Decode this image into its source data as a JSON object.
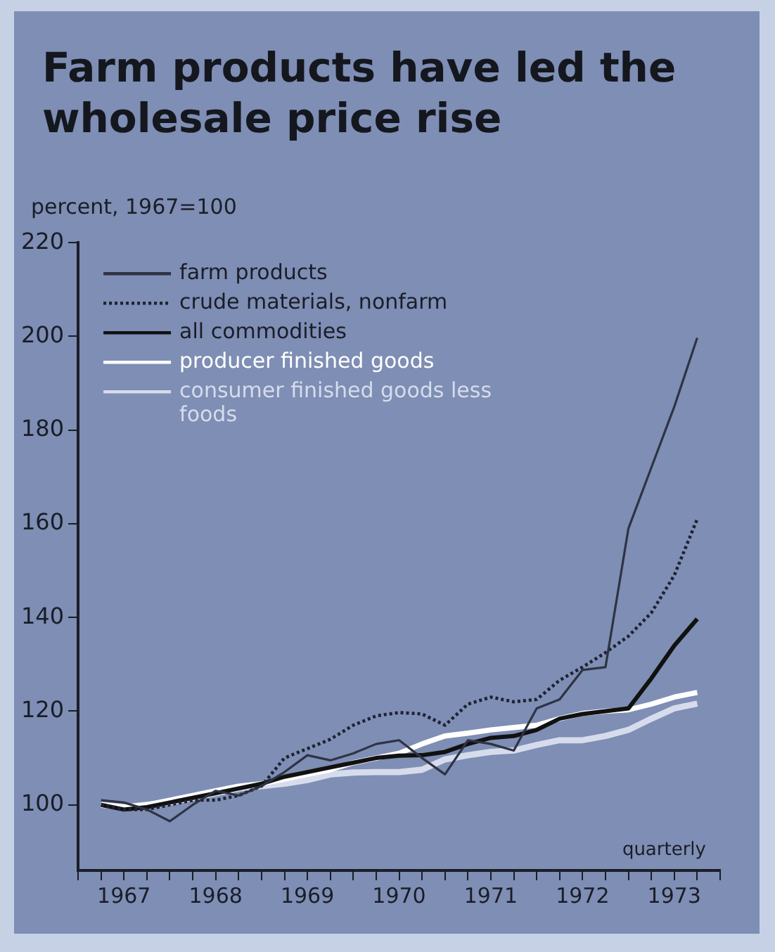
{
  "chart_data": {
    "type": "line",
    "title": "Farm products have led the wholesale price rise",
    "ylabel": "percent, 1967=100",
    "annotations": [
      "quarterly"
    ],
    "x": [
      1967.25,
      1967.5,
      1967.75,
      1968,
      1968.25,
      1968.5,
      1968.75,
      1969,
      1969.25,
      1969.5,
      1969.75,
      1970,
      1970.25,
      1970.5,
      1970.75,
      1971,
      1971.25,
      1971.5,
      1971.75,
      1972,
      1972.25,
      1972.5,
      1972.75,
      1973,
      1973.25,
      1973.5,
      1973.75
    ],
    "series": [
      {
        "name": "farm products",
        "color": "#2e3344",
        "line_style": "solid",
        "values": [
          101,
          100.5,
          99,
          96.5,
          100,
          103,
          102,
          104,
          107,
          110.6,
          109.5,
          111,
          113,
          113.8,
          110,
          106.5,
          113.8,
          113,
          111.6,
          120.6,
          122.5,
          128.8,
          129.4,
          159,
          172,
          185,
          199.7
        ]
      },
      {
        "name": "crude materials, nonfarm",
        "color": "#1e2232",
        "line_style": "dotted",
        "values": [
          100,
          99,
          99,
          100,
          101,
          101,
          102,
          104,
          110,
          112,
          114,
          117,
          119,
          119.7,
          119.4,
          117,
          121.5,
          123,
          122,
          122.5,
          126.6,
          129.4,
          132.5,
          136,
          141,
          149,
          161
        ]
      },
      {
        "name": "all commodities",
        "color": "#111111",
        "line_style": "solid",
        "values": [
          100,
          99,
          99.5,
          100.5,
          101.5,
          102.5,
          103.5,
          104.5,
          106,
          107,
          108,
          109,
          110,
          110.5,
          110.6,
          111.3,
          113,
          114.3,
          114.7,
          116,
          118.4,
          119.4,
          120,
          120.6,
          127,
          134,
          139.7
        ]
      },
      {
        "name": "producer finished goods",
        "color": "#ffffff",
        "line_style": "solid",
        "values": [
          100,
          99.5,
          100,
          101,
          102,
          103,
          104,
          104.5,
          105.5,
          106.5,
          107.5,
          109,
          110,
          111,
          113,
          114.7,
          115.3,
          116,
          116.5,
          117,
          118.4,
          119.5,
          120,
          120.3,
          121.5,
          123,
          124
        ]
      },
      {
        "name": "consumer finished goods less foods",
        "color": "#d6dcec",
        "line_style": "solid",
        "values": [
          100,
          99.5,
          100,
          100.5,
          101.5,
          102.5,
          103.5,
          104,
          104.5,
          105.3,
          106.5,
          106.9,
          107,
          107,
          107.5,
          109.7,
          110.6,
          111.3,
          111.6,
          112.8,
          113.8,
          113.8,
          114.7,
          116,
          118.4,
          120.6,
          121.6
        ]
      }
    ],
    "xlim": [
      1967,
      1974
    ],
    "xticks": [
      {
        "value": 1967,
        "label": null
      },
      {
        "value": 1967.25,
        "label": null
      },
      {
        "value": 1967.5,
        "label": "1967"
      },
      {
        "value": 1967.75,
        "label": null
      },
      {
        "value": 1968,
        "label": null
      },
      {
        "value": 1968.25,
        "label": null
      },
      {
        "value": 1968.5,
        "label": "1968"
      },
      {
        "value": 1968.75,
        "label": null
      },
      {
        "value": 1969,
        "label": null
      },
      {
        "value": 1969.25,
        "label": null
      },
      {
        "value": 1969.5,
        "label": "1969"
      },
      {
        "value": 1969.75,
        "label": null
      },
      {
        "value": 1970,
        "label": null
      },
      {
        "value": 1970.25,
        "label": null
      },
      {
        "value": 1970.5,
        "label": "1970"
      },
      {
        "value": 1970.75,
        "label": null
      },
      {
        "value": 1971,
        "label": null
      },
      {
        "value": 1971.25,
        "label": null
      },
      {
        "value": 1971.5,
        "label": "1971"
      },
      {
        "value": 1971.75,
        "label": null
      },
      {
        "value": 1972,
        "label": null
      },
      {
        "value": 1972.25,
        "label": null
      },
      {
        "value": 1972.5,
        "label": "1972"
      },
      {
        "value": 1972.75,
        "label": null
      },
      {
        "value": 1973,
        "label": null
      },
      {
        "value": 1973.25,
        "label": null
      },
      {
        "value": 1973.5,
        "label": "1973"
      },
      {
        "value": 1973.75,
        "label": null
      },
      {
        "value": 1974,
        "label": null
      }
    ],
    "ylim": [
      86,
      220
    ],
    "yticks": [
      100,
      120,
      140,
      160,
      180,
      200,
      220
    ],
    "grid": false,
    "legend": "top left",
    "marker": "none"
  }
}
